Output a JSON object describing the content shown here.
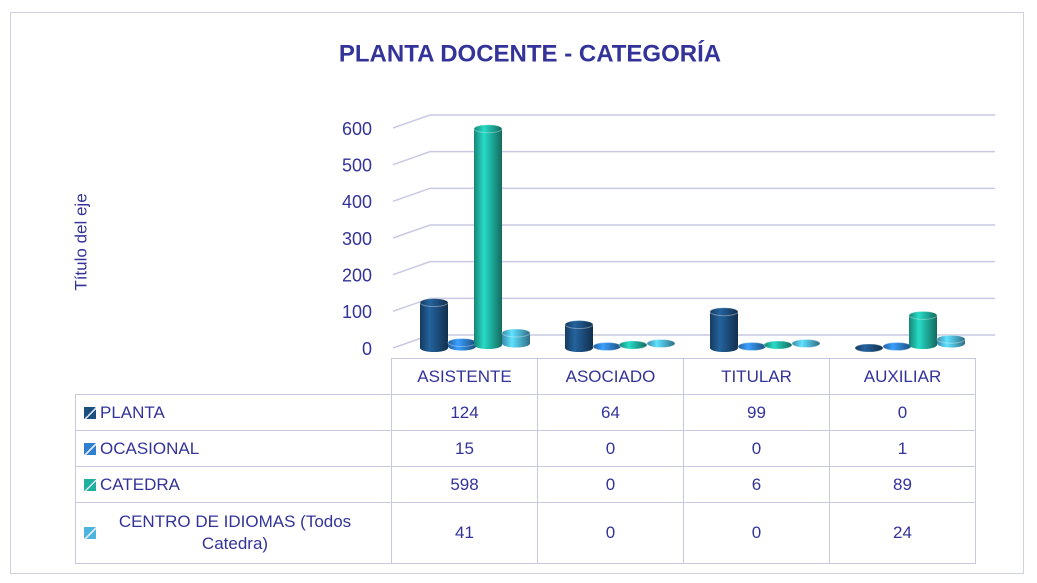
{
  "chart_data": {
    "type": "bar",
    "title": "PLANTA DOCENTE - CATEGORÍA",
    "y_label": "Título del eje",
    "categories": [
      "ASISTENTE",
      "ASOCIADO",
      "TITULAR",
      "AUXILIAR"
    ],
    "series": [
      {
        "name": "PLANTA",
        "color": "#1d4f7e",
        "values": [
          124,
          64,
          99,
          0
        ]
      },
      {
        "name": "OCASIONAL",
        "color": "#2e7fcf",
        "values": [
          15,
          0,
          0,
          1
        ]
      },
      {
        "name": "CATEDRA",
        "color": "#1fb09e",
        "values": [
          598,
          0,
          6,
          89
        ]
      },
      {
        "name": "CENTRO DE IDIOMAS (Todos Catedra)",
        "color": "#4cb5de",
        "values": [
          41,
          0,
          0,
          24
        ]
      }
    ],
    "ylim": [
      0,
      600
    ],
    "yticks": [
      0,
      100,
      200,
      300,
      400,
      500,
      600
    ],
    "grid": true
  }
}
